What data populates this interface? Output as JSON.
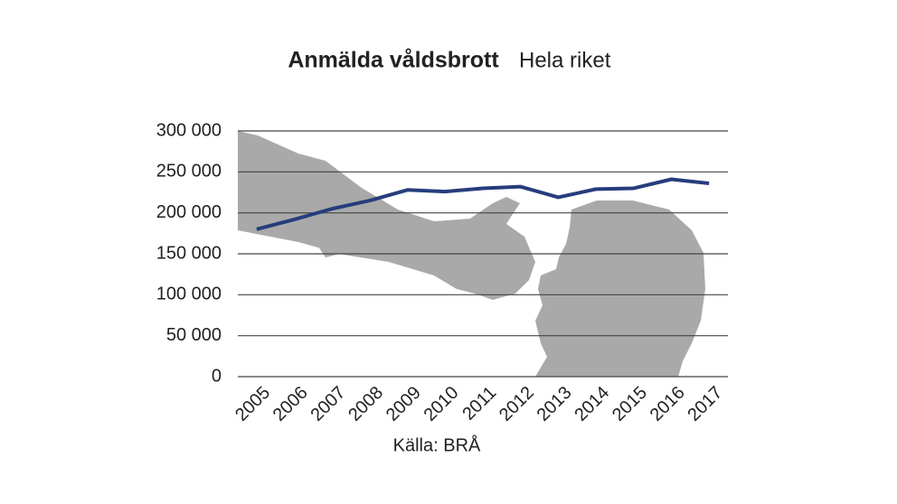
{
  "chart_data": {
    "type": "line",
    "title": "Anmälda våldsbrott",
    "subtitle": "Hela riket",
    "source": "Källa: BRÅ",
    "categories": [
      "2005",
      "2006",
      "2007",
      "2008",
      "2009",
      "2010",
      "2011",
      "2012",
      "2013",
      "2014",
      "2015",
      "2016",
      "2017"
    ],
    "series": [
      {
        "name": "Anmälda våldsbrott",
        "color": "#263d7c",
        "values": [
          180000,
          192000,
          205000,
          215000,
          228000,
          226000,
          230000,
          232000,
          219000,
          229000,
          230000,
          241000,
          236000
        ]
      }
    ],
    "ylim": [
      0,
      300000
    ],
    "yticks": [
      0,
      {
        "value": 50000,
        "label": "50 000"
      },
      {
        "value": 100000,
        "label": "100 000"
      },
      {
        "value": 150000,
        "label": "150 000"
      },
      {
        "value": 200000,
        "label": "200 000"
      },
      {
        "value": 250000,
        "label": "250 000"
      },
      {
        "value": 300000,
        "label": "300 000"
      }
    ],
    "grid": true
  }
}
